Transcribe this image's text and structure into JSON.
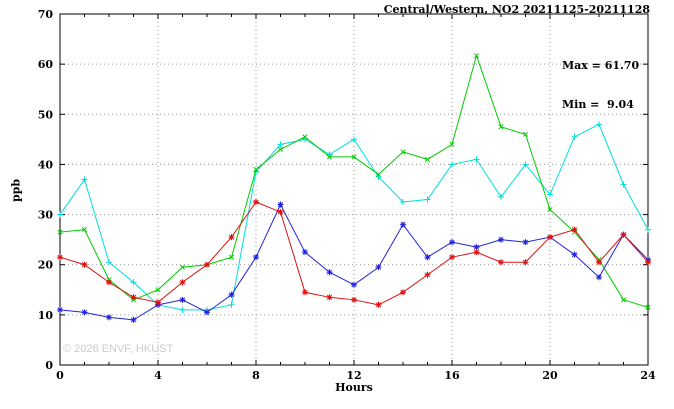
{
  "title": "Central/Western, NO2 20211125-20211128",
  "annotations": {
    "max": "Max = 61.70",
    "min": "Min =  9.04"
  },
  "watermark": "© 2026 ENVF, HKUST",
  "chart_data": {
    "type": "line",
    "title": "Central/Western, NO2 20211125-20211128",
    "xlabel": "Hours",
    "ylabel": "ppb",
    "xlim": [
      0,
      24
    ],
    "ylim": [
      0,
      70
    ],
    "xticks": [
      0,
      4,
      8,
      12,
      16,
      20,
      24
    ],
    "yticks": [
      0,
      10,
      20,
      30,
      40,
      50,
      60,
      70
    ],
    "grid": true,
    "legend": "none",
    "max_value": 61.7,
    "min_value": 9.04,
    "x": [
      0,
      1,
      2,
      3,
      4,
      5,
      6,
      7,
      8,
      9,
      10,
      11,
      12,
      13,
      14,
      15,
      16,
      17,
      18,
      19,
      20,
      21,
      22,
      23,
      24
    ],
    "series": [
      {
        "name": "cyan",
        "color": "#00dede",
        "marker": "plus",
        "values": [
          30,
          37,
          20.5,
          16.5,
          12,
          11,
          11,
          12,
          38.5,
          44,
          45,
          42,
          45,
          37.5,
          32.5,
          33,
          40,
          41,
          33.5,
          40,
          34,
          45.5,
          48,
          36,
          27
        ]
      },
      {
        "name": "green",
        "color": "#00cc00",
        "marker": "cross",
        "values": [
          26.5,
          27,
          17,
          13,
          15,
          19.5,
          20,
          21.5,
          39,
          43,
          45.5,
          41.5,
          41.5,
          38,
          42.5,
          41,
          44,
          61.7,
          47.5,
          46,
          31,
          26.5,
          21,
          13,
          11.5
        ]
      },
      {
        "name": "blue",
        "color": "#2222dd",
        "marker": "asterisk",
        "values": [
          11,
          10.5,
          9.5,
          9,
          12,
          13,
          10.5,
          14,
          21.5,
          32,
          22.5,
          18.5,
          16,
          19.5,
          28,
          21.5,
          24.5,
          23.5,
          25,
          24.5,
          25.5,
          22,
          17.5,
          26,
          21
        ]
      },
      {
        "name": "red",
        "color": "#dd1111",
        "marker": "asterisk",
        "values": [
          21.5,
          20,
          16.5,
          13.5,
          12.5,
          16.5,
          20,
          25.5,
          32.5,
          30.5,
          14.5,
          13.5,
          13,
          12,
          14.5,
          18,
          21.5,
          22.5,
          20.5,
          20.5,
          25.5,
          27,
          20.5,
          26,
          20.5
        ]
      }
    ]
  }
}
